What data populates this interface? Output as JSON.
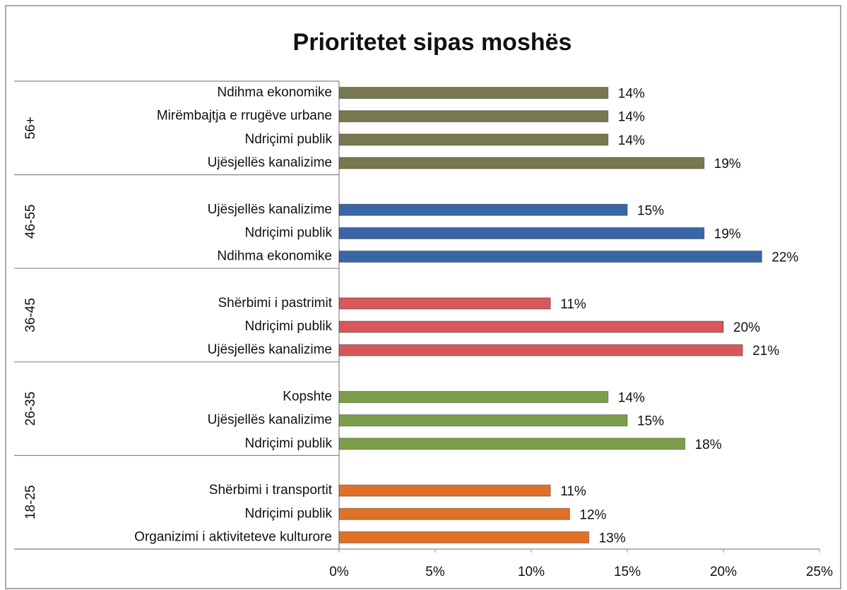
{
  "chart_data": {
    "type": "bar",
    "orientation": "horizontal",
    "title": "Prioritetet sipas moshës",
    "xlim": [
      0,
      25
    ],
    "xticks": [
      {
        "value": 0,
        "label": "0%"
      },
      {
        "value": 5,
        "label": "5%"
      },
      {
        "value": 10,
        "label": "10%"
      },
      {
        "value": 15,
        "label": "15%"
      },
      {
        "value": 20,
        "label": "20%"
      },
      {
        "value": 25,
        "label": "25%"
      }
    ],
    "groups": [
      {
        "name": "56+",
        "color": "#78784f",
        "categories": [
          "Ndihma ekonomike",
          "Mirëmbajtja e rrugëve urbane",
          "Ndriçimi publik",
          "Ujësjellës kanalizime"
        ],
        "values": [
          14,
          14,
          14,
          19
        ],
        "value_labels": [
          "14%",
          "14%",
          "14%",
          "19%"
        ]
      },
      {
        "name": "46-55",
        "color": "#3a66a6",
        "categories": [
          "Ujësjellës kanalizime",
          "Ndriçimi publik",
          "Ndihma ekonomike"
        ],
        "values": [
          15,
          19,
          22
        ],
        "value_labels": [
          "15%",
          "19%",
          "22%"
        ]
      },
      {
        "name": "36-45",
        "color": "#d6585b",
        "categories": [
          "Shërbimi i pastrimit",
          "Ndriçimi publik",
          "Ujësjellës kanalizime"
        ],
        "values": [
          11,
          20,
          21
        ],
        "value_labels": [
          "11%",
          "20%",
          "21%"
        ]
      },
      {
        "name": "26-35",
        "color": "#7c9e4a",
        "categories": [
          "Kopshte",
          "Ujësjellës kanalizime",
          "Ndriçimi publik"
        ],
        "values": [
          14,
          15,
          18
        ],
        "value_labels": [
          "14%",
          "15%",
          "18%"
        ]
      },
      {
        "name": "18-25",
        "color": "#df7129",
        "categories": [
          "Shërbimi i transportit",
          "Ndriçimi publik",
          "Organizimi i aktiviteteve kulturore"
        ],
        "values": [
          11,
          12,
          13
        ],
        "value_labels": [
          "11%",
          "12%",
          "13%"
        ]
      }
    ]
  }
}
